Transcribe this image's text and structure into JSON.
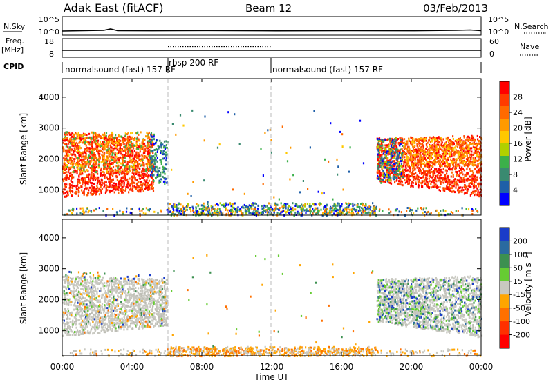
{
  "header": {
    "station": "Adak East (fitACF)",
    "beam": "Beam 12",
    "date": "03/Feb/2013"
  },
  "strip_nsky": {
    "left_label": "N.Sky",
    "right_label": "N.Search",
    "left_ticks": [
      "10^5",
      "10^0"
    ],
    "right_ticks": [
      "10^5",
      "10^0"
    ]
  },
  "strip_freq": {
    "left_label_1": "Freq.",
    "left_label_2": "[MHz]",
    "left_ticks": [
      "18",
      "8"
    ],
    "right_label": "Nave",
    "right_ticks": [
      "60",
      "0"
    ]
  },
  "cpid": {
    "label": "CPID",
    "segments": [
      {
        "text": "normalsound (fast) 157 RF",
        "start_hour": 0,
        "end_hour": 6
      },
      {
        "text": "rbsp 200 RF",
        "start_hour": 6,
        "end_hour": 12
      },
      {
        "text": "normalsound (fast) 157 RF",
        "start_hour": 12,
        "end_hour": 24
      }
    ]
  },
  "colorbars": {
    "power": {
      "title": "Power [dB]",
      "ticks": [
        "28",
        "24",
        "20",
        "16",
        "12",
        "8",
        "4"
      ],
      "colors": [
        "#ff0000",
        "#ff3b00",
        "#ff6a00",
        "#ff9a00",
        "#ffc800",
        "#b0d000",
        "#3cb04a",
        "#3a8a70",
        "#1f5fa8",
        "#0000ff"
      ]
    },
    "velocity": {
      "title": "Velocity [m s⁻¹]",
      "ticks": [
        "200",
        "100",
        "50",
        "15",
        "-15",
        "-50",
        "-100",
        "-200"
      ],
      "colors": [
        "#1a3cc8",
        "#2a6aa0",
        "#3c9050",
        "#66cc33",
        "#c8c8c0",
        "#ffa500",
        "#ff7000",
        "#ff3000",
        "#ff0000"
      ]
    }
  },
  "x_axis": {
    "label": "Time UT",
    "ticks": [
      "00:00",
      "04:00",
      "08:00",
      "12:00",
      "16:00",
      "20:00",
      "00:00"
    ]
  },
  "chart_data": [
    {
      "type": "heatmap",
      "title": "",
      "quantity": "Power",
      "xlabel": "Time UT",
      "ylabel": "Slant Range [km]",
      "xlim_hours": [
        0,
        24
      ],
      "ylim_km": [
        180,
        4600
      ],
      "y_ticks": [
        1000,
        2000,
        3000,
        4000
      ],
      "colorbar_label": "Power [dB]",
      "colorbar_range_db": [
        0,
        30
      ],
      "regions": [
        {
          "t_start": 0.0,
          "t_end": 5.2,
          "range_min_km": 800,
          "range_max_km": 3000,
          "dominant": "strong power 24-30 dB (red)"
        },
        {
          "t_start": 5.2,
          "t_end": 6.0,
          "range_min_km": 1200,
          "range_max_km": 2900,
          "dominant": "weak power 4-16 dB (blue/green)"
        },
        {
          "t_start": 6.0,
          "t_end": 18.0,
          "range_min_km": 200,
          "range_max_km": 600,
          "dominant": "ground scatter 4-12 dB (blue)"
        },
        {
          "t_start": 18.0,
          "t_end": 24.0,
          "range_min_km": 800,
          "range_max_km": 2700,
          "dominant": "strong power 24-30 dB (red)"
        }
      ]
    },
    {
      "type": "heatmap",
      "title": "",
      "quantity": "Velocity",
      "xlabel": "Time UT",
      "ylabel": "Slant Range [km]",
      "xlim_hours": [
        0,
        24
      ],
      "ylim_km": [
        180,
        4600
      ],
      "y_ticks": [
        1000,
        2000,
        3000,
        4000
      ],
      "colorbar_label": "Velocity [m s⁻¹]",
      "colorbar_range_ms": [
        -200,
        200
      ],
      "regions": [
        {
          "t_start": 0.0,
          "t_end": 6.0,
          "range_min_km": 800,
          "range_max_km": 2800,
          "dominant": "ground scatter (grey)"
        },
        {
          "t_start": 6.0,
          "t_end": 18.0,
          "range_min_km": 200,
          "range_max_km": 500,
          "dominant": "-15 to -100 m/s (orange)"
        },
        {
          "t_start": 18.0,
          "t_end": 24.0,
          "range_min_km": 800,
          "range_max_km": 2700,
          "dominant": "ground scatter (grey) with green 15-50 m/s"
        }
      ]
    }
  ]
}
